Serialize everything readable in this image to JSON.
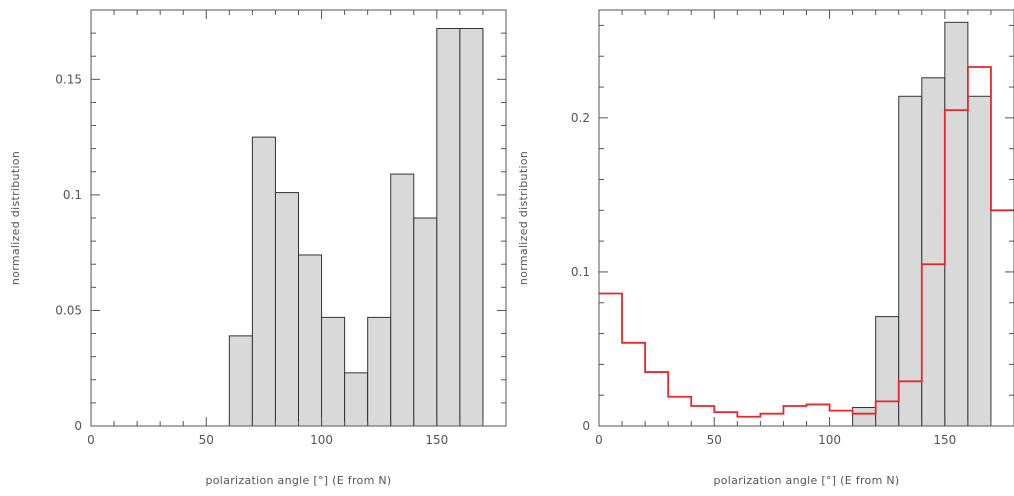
{
  "chart_data": [
    {
      "type": "bar",
      "xlabel": "polarization angle [°] (E from N)",
      "ylabel": "normalized distribution",
      "xlim": [
        0,
        180
      ],
      "ylim": [
        0,
        0.18
      ],
      "xticks": [
        0,
        50,
        100,
        150
      ],
      "xtick_labels": [
        "0",
        "50",
        "100",
        "150"
      ],
      "yticks": [
        0,
        0.05,
        0.1,
        0.15
      ],
      "ytick_labels": [
        "0",
        "0.05",
        "0.1",
        "0.15"
      ],
      "bin_width": 10,
      "grid": false,
      "series": [
        {
          "style": "filled-histogram",
          "color": "#d9d9d9",
          "edge_color": "#333333",
          "x": [
            60,
            70,
            80,
            90,
            100,
            110,
            120,
            130,
            140,
            150,
            160
          ],
          "values": [
            0.039,
            0.125,
            0.101,
            0.074,
            0.047,
            0.023,
            0.047,
            0.109,
            0.09,
            0.172,
            0.172
          ]
        }
      ]
    },
    {
      "type": "bar",
      "xlabel": "polarization angle [°] (E from N)",
      "ylabel": "normalized distribution",
      "xlim": [
        0,
        180
      ],
      "ylim": [
        0,
        0.27
      ],
      "xticks": [
        0,
        50,
        100,
        150
      ],
      "xtick_labels": [
        "0",
        "50",
        "100",
        "150"
      ],
      "yticks": [
        0,
        0.1,
        0.2
      ],
      "ytick_labels": [
        "0",
        "0.1",
        "0.2"
      ],
      "bin_width": 10,
      "grid": false,
      "series": [
        {
          "style": "filled-histogram",
          "color": "#d9d9d9",
          "edge_color": "#333333",
          "x": [
            110,
            120,
            130,
            140,
            150,
            160
          ],
          "values": [
            0.012,
            0.071,
            0.214,
            0.226,
            0.262,
            0.214
          ]
        },
        {
          "style": "step-histogram",
          "color": "#e8262b",
          "x": [
            0,
            10,
            20,
            30,
            40,
            50,
            60,
            70,
            80,
            90,
            100,
            110,
            120,
            130,
            140,
            150,
            160,
            170
          ],
          "values": [
            0.086,
            0.054,
            0.035,
            0.019,
            0.013,
            0.009,
            0.006,
            0.008,
            0.013,
            0.014,
            0.01,
            0.008,
            0.016,
            0.029,
            0.105,
            0.205,
            0.233,
            0.14
          ]
        }
      ]
    }
  ]
}
